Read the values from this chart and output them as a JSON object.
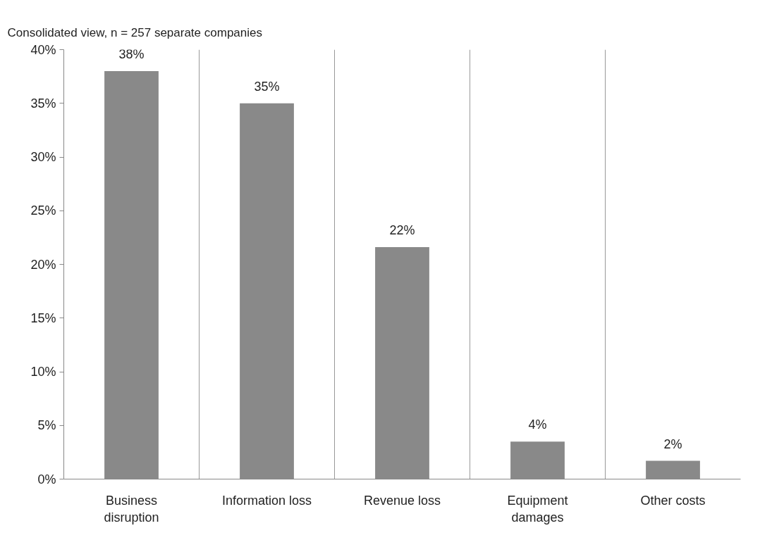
{
  "chart_data": {
    "type": "bar",
    "title": "Consolidated view, n = 257 separate companies",
    "categories": [
      "Business\ndisruption",
      "Information loss",
      "Revenue loss",
      "Equipment\ndamages",
      "Other costs"
    ],
    "values": [
      38,
      35,
      21.6,
      3.5,
      1.7
    ],
    "color": "#898989",
    "value_labels": [
      "38%",
      "35%",
      "22%",
      "4%",
      "2%"
    ],
    "ylim": [
      0,
      40
    ],
    "yticks": [
      {
        "value": 0,
        "label": "0%"
      },
      {
        "value": 5,
        "label": "5%"
      },
      {
        "value": 10,
        "label": "10%"
      },
      {
        "value": 15,
        "label": "15%"
      },
      {
        "value": 20,
        "label": "20%"
      },
      {
        "value": 25,
        "label": "25%"
      },
      {
        "value": 30,
        "label": "30%"
      },
      {
        "value": 35,
        "label": "35%"
      },
      {
        "value": 40,
        "label": "40%"
      }
    ],
    "grid": "x"
  }
}
